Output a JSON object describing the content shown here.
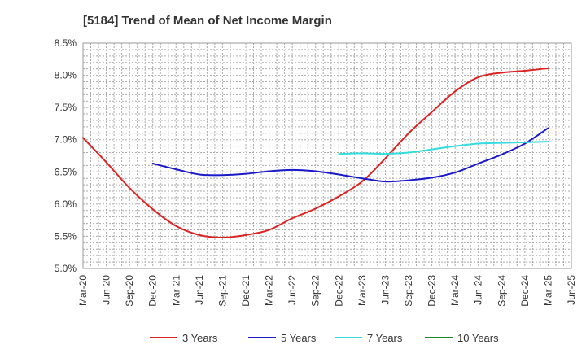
{
  "chart_data": {
    "type": "line",
    "title": "[5184]  Trend of Mean of Net Income Margin",
    "xlabel": "",
    "ylabel": "",
    "x_ticks": [
      "Mar-20",
      "Jun-20",
      "Sep-20",
      "Dec-20",
      "Mar-21",
      "Jun-21",
      "Sep-21",
      "Dec-21",
      "Mar-22",
      "Jun-22",
      "Sep-22",
      "Dec-22",
      "Mar-23",
      "Jun-23",
      "Sep-23",
      "Dec-23",
      "Mar-24",
      "Jun-24",
      "Sep-24",
      "Dec-24",
      "Mar-25",
      "Jun-25"
    ],
    "y_ticks": [
      "5.0%",
      "5.5%",
      "6.0%",
      "6.5%",
      "7.0%",
      "7.5%",
      "8.0%",
      "8.5%"
    ],
    "ylim": [
      5.0,
      8.5
    ],
    "grid": true,
    "legend_position": "bottom",
    "series": [
      {
        "name": "3 Years",
        "color": "#dd2222",
        "x": [
          "Mar-20",
          "Jun-20",
          "Sep-20",
          "Dec-20",
          "Mar-21",
          "Jun-21",
          "Sep-21",
          "Dec-21",
          "Mar-22",
          "Jun-22",
          "Sep-22",
          "Dec-22",
          "Mar-23",
          "Jun-23",
          "Sep-23",
          "Dec-23",
          "Mar-24",
          "Jun-24",
          "Sep-24",
          "Dec-24",
          "Mar-25"
        ],
        "values": [
          7.03,
          6.65,
          6.25,
          5.92,
          5.66,
          5.52,
          5.48,
          5.52,
          5.6,
          5.78,
          5.93,
          6.12,
          6.35,
          6.71,
          7.1,
          7.43,
          7.75,
          7.97,
          8.04,
          8.07,
          8.11
        ]
      },
      {
        "name": "5 Years",
        "color": "#1a1acc",
        "x": [
          "Dec-20",
          "Mar-21",
          "Jun-21",
          "Sep-21",
          "Dec-21",
          "Mar-22",
          "Jun-22",
          "Sep-22",
          "Dec-22",
          "Mar-23",
          "Jun-23",
          "Sep-23",
          "Dec-23",
          "Mar-24",
          "Jun-24",
          "Sep-24",
          "Dec-24",
          "Mar-25"
        ],
        "values": [
          6.63,
          6.54,
          6.46,
          6.45,
          6.47,
          6.51,
          6.53,
          6.51,
          6.46,
          6.4,
          6.35,
          6.37,
          6.41,
          6.49,
          6.63,
          6.77,
          6.94,
          7.18
        ]
      },
      {
        "name": "7 Years",
        "color": "#33dddd",
        "x": [
          "Dec-22",
          "Mar-23",
          "Jun-23",
          "Sep-23",
          "Dec-23",
          "Mar-24",
          "Jun-24",
          "Sep-24",
          "Dec-24",
          "Mar-25"
        ],
        "values": [
          6.78,
          6.79,
          6.78,
          6.8,
          6.85,
          6.9,
          6.94,
          6.95,
          6.96,
          6.97
        ]
      },
      {
        "name": "10 Years",
        "color": "#228822",
        "x": [],
        "values": []
      }
    ]
  }
}
